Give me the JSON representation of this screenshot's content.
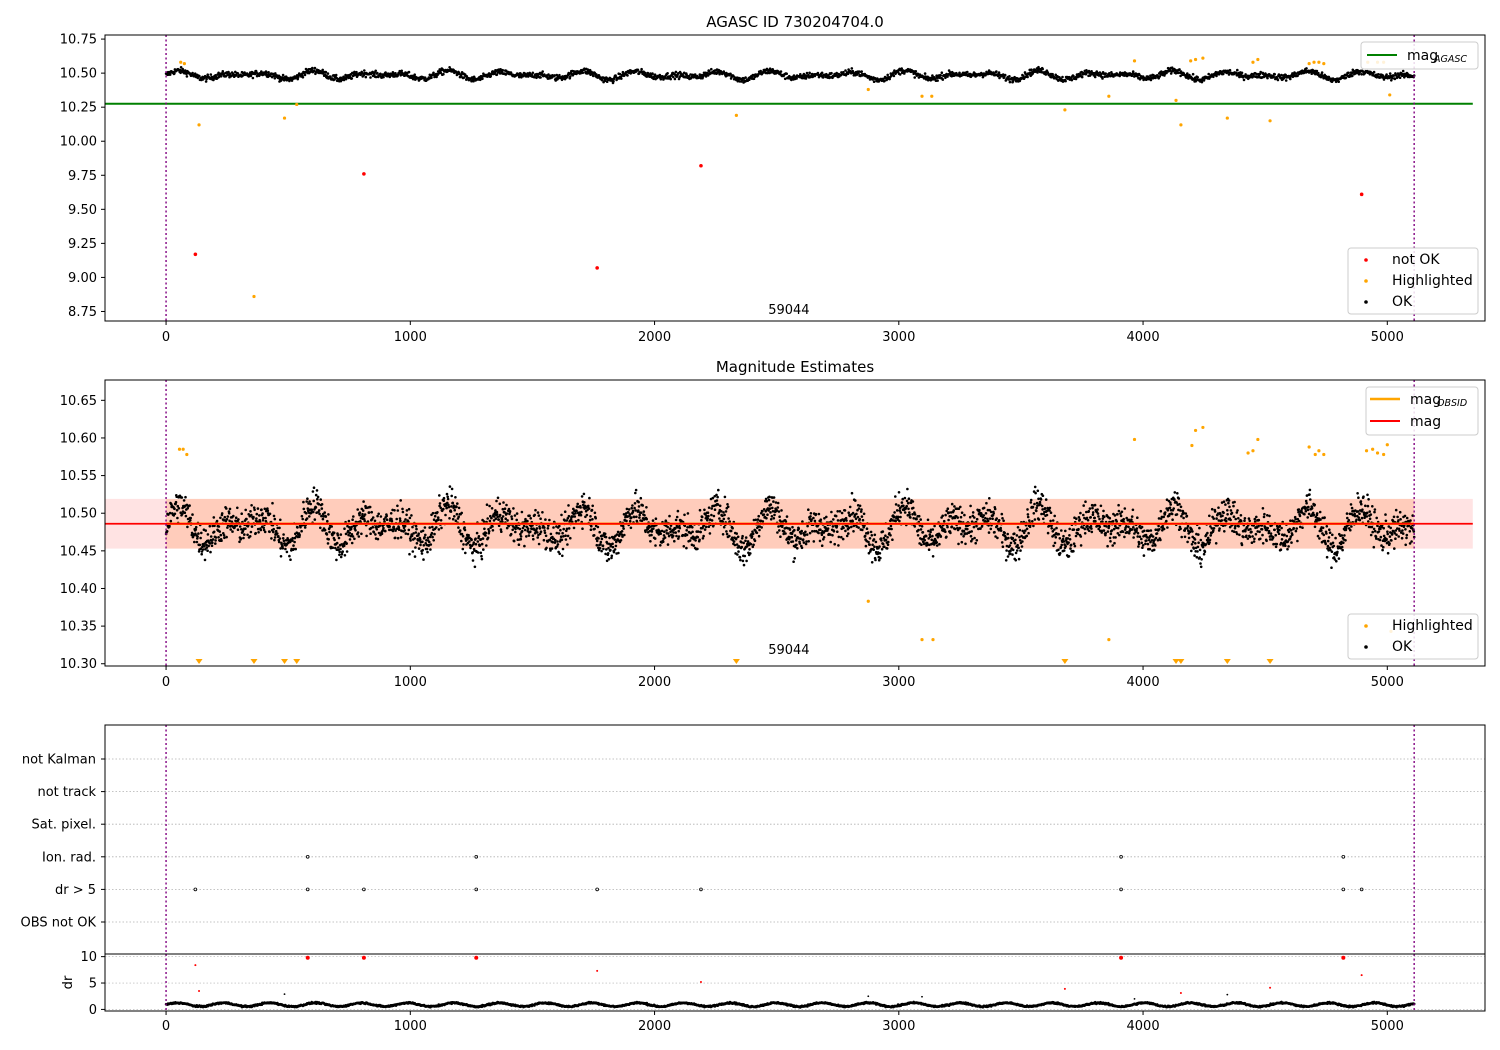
{
  "colors": {
    "ok": "#000000",
    "not_ok": "#ff0000",
    "highlighted": "#ffa500",
    "agasc_line": "#008000",
    "obsid_line": "#ffa500",
    "mag_line": "#ff0000",
    "band_fill": "#ffb0b0",
    "obs_line": "#800080",
    "grid": "#b0b0b0"
  },
  "chart_data": [
    {
      "type": "scatter",
      "title": "AGASC ID 730204704.0",
      "xlim": [
        -250,
        5400
      ],
      "ylim": [
        8.68,
        10.78
      ],
      "x_ticks": [
        0,
        1000,
        2000,
        3000,
        4000,
        5000
      ],
      "y_ticks": [
        8.75,
        9.0,
        9.25,
        9.5,
        9.75,
        10.0,
        10.25,
        10.5,
        10.75
      ],
      "y_tick_labels": [
        "8.75",
        "9.00",
        "9.25",
        "9.50",
        "9.75",
        "10.00",
        "10.25",
        "10.50",
        "10.75"
      ],
      "annotation": {
        "text": "59044",
        "x": 2550,
        "y": 8.73
      },
      "obs_boundaries": [
        0,
        5110
      ],
      "lines": [
        {
          "name": "mag",
          "name_sub": "AGASC",
          "y": 10.275,
          "x": [
            -250,
            5350
          ],
          "color_key": "agasc_line"
        }
      ],
      "legend_lines_position": "upper-right",
      "legend_points_position": "lower-right",
      "legend_points": [
        {
          "label": "not OK",
          "color_key": "not_ok"
        },
        {
          "label": "Highlighted",
          "color_key": "highlighted"
        },
        {
          "label": "OK",
          "color_key": "ok"
        }
      ],
      "ok_band": {
        "x": [
          0,
          5110
        ],
        "center": 10.485,
        "amplitude": 0.035,
        "noise": 0.022,
        "n": 2400
      },
      "highlighted_points": [
        [
          60,
          10.58
        ],
        [
          75,
          10.57
        ],
        [
          135,
          10.12
        ],
        [
          360,
          8.86
        ],
        [
          485,
          10.17
        ],
        [
          535,
          10.27
        ],
        [
          2335,
          10.19
        ],
        [
          2875,
          10.38
        ],
        [
          3095,
          10.33
        ],
        [
          3135,
          10.33
        ],
        [
          3680,
          10.23
        ],
        [
          3860,
          10.33
        ],
        [
          3965,
          10.59
        ],
        [
          4135,
          10.3
        ],
        [
          4155,
          10.12
        ],
        [
          4195,
          10.59
        ],
        [
          4215,
          10.6
        ],
        [
          4245,
          10.61
        ],
        [
          4345,
          10.17
        ],
        [
          4450,
          10.58
        ],
        [
          4470,
          10.6
        ],
        [
          4520,
          10.15
        ],
        [
          4680,
          10.57
        ],
        [
          4700,
          10.58
        ],
        [
          4720,
          10.58
        ],
        [
          4740,
          10.57
        ],
        [
          4920,
          10.58
        ],
        [
          4960,
          10.58
        ],
        [
          4985,
          10.58
        ],
        [
          5010,
          10.34
        ]
      ],
      "not_ok_points": [
        [
          120,
          9.17
        ],
        [
          810,
          9.76
        ],
        [
          1765,
          9.07
        ],
        [
          2190,
          9.82
        ],
        [
          4895,
          9.61
        ]
      ]
    },
    {
      "type": "scatter",
      "title": "Magnitude Estimates",
      "xlim": [
        -250,
        5400
      ],
      "ylim": [
        10.297,
        10.677
      ],
      "x_ticks": [
        0,
        1000,
        2000,
        3000,
        4000,
        5000
      ],
      "y_ticks": [
        10.3,
        10.35,
        10.4,
        10.45,
        10.5,
        10.55,
        10.6,
        10.65
      ],
      "y_tick_labels": [
        "10.30",
        "10.35",
        "10.40",
        "10.45",
        "10.50",
        "10.55",
        "10.60",
        "10.65"
      ],
      "annotation": {
        "text": "59044",
        "x": 2550,
        "y": 10.313
      },
      "obs_boundaries": [
        0,
        5110
      ],
      "mag_line": {
        "y": 10.486,
        "x": [
          -250,
          5350
        ]
      },
      "band": {
        "y": [
          10.453,
          10.519
        ],
        "x": [
          -250,
          5350
        ]
      },
      "band_inner": {
        "y": [
          10.453,
          10.519
        ],
        "x": [
          0,
          5110
        ]
      },
      "obsid_segments": [
        [
          0,
          5110,
          10.486
        ]
      ],
      "legend_lines_position": "upper-right",
      "legend_lines": [
        {
          "name": "mag",
          "name_sub": "OBSID",
          "color_key": "obsid_line"
        },
        {
          "name": "mag",
          "name_sub": "",
          "color_key": "mag_line"
        }
      ],
      "legend_points_position": "lower-right",
      "legend_points": [
        {
          "label": "Highlighted",
          "color_key": "highlighted"
        },
        {
          "label": "OK",
          "color_key": "ok"
        }
      ],
      "ok_band": {
        "x": [
          0,
          5110
        ],
        "center": 10.482,
        "amplitude": 0.03,
        "noise": 0.022,
        "n": 3400
      },
      "highlighted_points": [
        [
          55,
          10.585
        ],
        [
          70,
          10.585
        ],
        [
          85,
          10.578
        ],
        [
          2875,
          10.383
        ],
        [
          3095,
          10.332
        ],
        [
          3140,
          10.332
        ],
        [
          3860,
          10.332
        ],
        [
          3965,
          10.598
        ],
        [
          4200,
          10.59
        ],
        [
          4215,
          10.61
        ],
        [
          4245,
          10.614
        ],
        [
          4430,
          10.58
        ],
        [
          4450,
          10.583
        ],
        [
          4470,
          10.598
        ],
        [
          4680,
          10.588
        ],
        [
          4705,
          10.578
        ],
        [
          4720,
          10.583
        ],
        [
          4740,
          10.578
        ],
        [
          4915,
          10.583
        ],
        [
          4940,
          10.585
        ],
        [
          4960,
          10.58
        ],
        [
          4985,
          10.578
        ],
        [
          5000,
          10.591
        ],
        [
          5015,
          10.343
        ]
      ],
      "below_range_markers": [
        135,
        360,
        485,
        535,
        2335,
        3680,
        4135,
        4155,
        4345,
        4520
      ]
    },
    {
      "type": "scatter",
      "title": "",
      "xlim": [
        -250,
        5400
      ],
      "x_ticks": [
        0,
        1000,
        2000,
        3000,
        4000,
        5000
      ],
      "obs_boundaries": [
        0,
        5110
      ],
      "flag_rows": [
        "not Kalman",
        "not track",
        "Sat. pixel.",
        "Ion. rad.",
        "dr > 5",
        "OBS not OK"
      ],
      "flags": {
        "Ion. rad.": [
          580,
          1270,
          3910,
          4820
        ],
        "dr > 5": [
          120,
          580,
          810,
          1270,
          1765,
          2190,
          3910,
          4820,
          4895
        ]
      },
      "dr": {
        "ylabel": "dr",
        "ylim": [
          -0.3,
          10.5
        ],
        "y_ticks": [
          0,
          5,
          10
        ],
        "ok_band": {
          "x": [
            0,
            5110
          ],
          "center": 0.9,
          "amplitude": 0.35,
          "noise": 0.15,
          "n": 2400
        },
        "red_points": [
          [
            120,
            8.4
          ],
          [
            135,
            3.5
          ],
          [
            580,
            9.8
          ],
          [
            810,
            9.8
          ],
          [
            1270,
            9.8
          ],
          [
            1765,
            7.3
          ],
          [
            2190,
            5.2
          ],
          [
            3680,
            3.9
          ],
          [
            3910,
            9.8
          ],
          [
            4155,
            3.1
          ],
          [
            4520,
            4.1
          ],
          [
            4820,
            9.8
          ],
          [
            4895,
            6.5
          ]
        ],
        "black_points": [
          [
            485,
            2.9
          ],
          [
            2875,
            2.5
          ],
          [
            3095,
            2.4
          ],
          [
            4345,
            2.8
          ],
          [
            3965,
            2.0
          ]
        ]
      }
    }
  ]
}
